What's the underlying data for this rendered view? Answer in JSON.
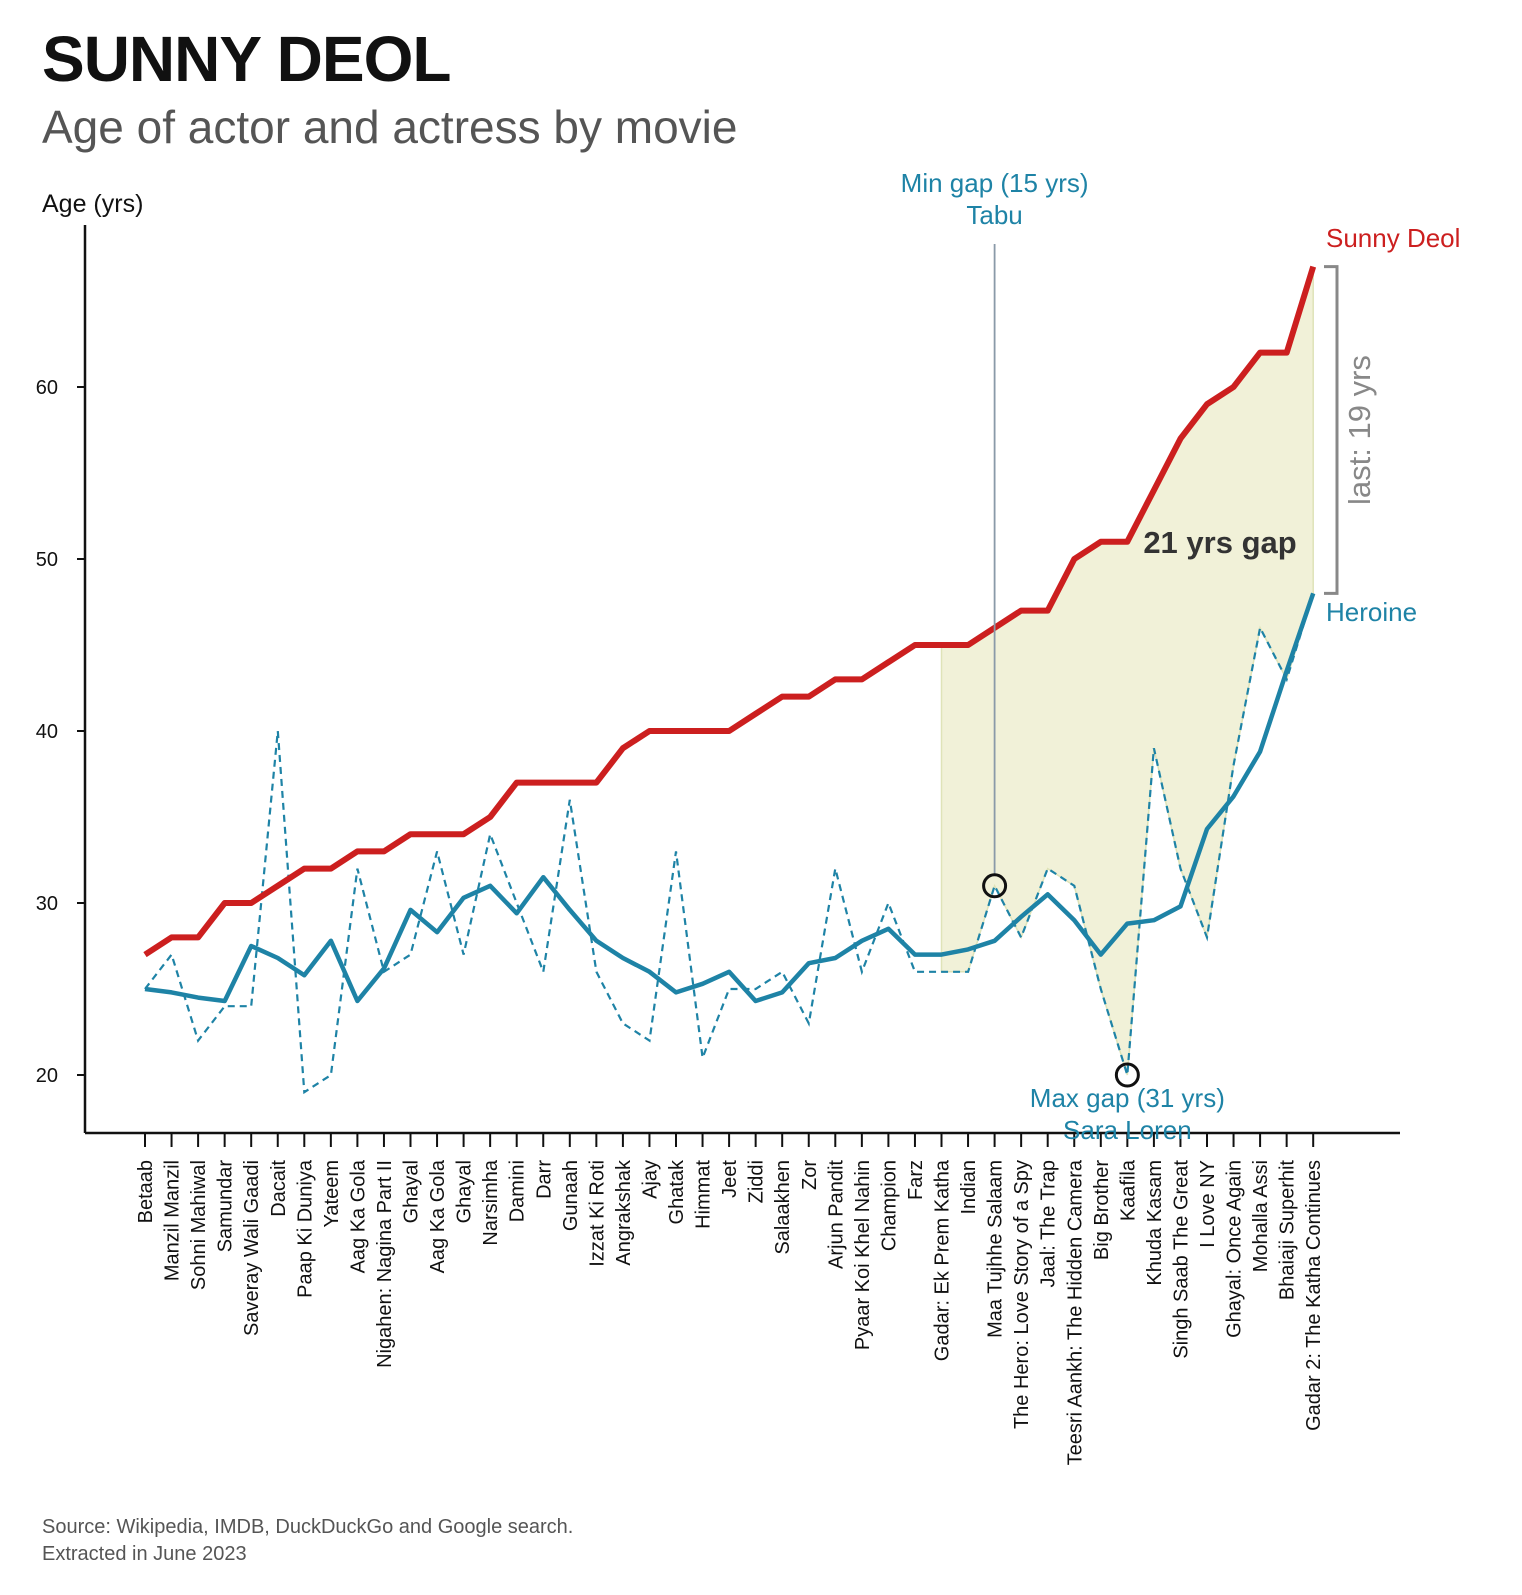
{
  "title": "SUNNY DEOL",
  "subtitle": "Age of actor and actress by movie",
  "source": {
    "line1": "Source: Wikipedia, IMDB, DuckDuckGo and Google search.",
    "line2": "Extracted in June 2023"
  },
  "colors": {
    "actor": "#cc1f1f",
    "heroine": "#1e83a6",
    "gap_fill": "#f1f1d8",
    "bracket": "#888888",
    "min_line": "#8a9aa8"
  },
  "chart_data": {
    "type": "line",
    "ylabel": "Age (yrs)",
    "ylim": [
      17,
      70
    ],
    "yticks": [
      20,
      30,
      40,
      50,
      60
    ],
    "categories": [
      "Betaab",
      "Manzil Manzil",
      "Sohni Mahiwal",
      "Samundar",
      "Saveray Wali Gaadi",
      "Dacait",
      "Paap Ki Duniya",
      "Yateem",
      "Aag Ka Gola",
      "Nigahen: Nagina Part II",
      "Ghayal",
      "Aag Ka Gola",
      "Ghayal",
      "Narsimha",
      "Damini",
      "Darr",
      "Gunaah",
      "Izzat Ki Roti",
      "Angrakshak",
      "Ajay",
      "Ghatak",
      "Himmat",
      "Jeet",
      "Ziddi",
      "Salaakhen",
      "Zor",
      "Arjun Pandit",
      "Pyaar Koi Khel Nahin",
      "Champion",
      "Farz",
      "Gadar: Ek Prem Katha",
      "Indian",
      "Maa Tujhhe Salaam",
      "The Hero: Love Story of a Spy",
      "Jaal: The Trap",
      "Teesri Aankh: The Hidden Camera",
      "Big Brother",
      "Kaafila",
      "Khuda Kasam",
      "Singh Saab The Great",
      "I Love NY",
      "Ghayal: Once Again",
      "Mohalla Assi",
      "Bhaiaji Superhit",
      "Gadar 2: The Katha Continues"
    ],
    "series": [
      {
        "name": "Sunny Deol",
        "style": "solid",
        "values": [
          27,
          28,
          28,
          30,
          30,
          31,
          32,
          32,
          33,
          33,
          34,
          34,
          34,
          35,
          37,
          37,
          37,
          37,
          39,
          40,
          40,
          40,
          40,
          41,
          42,
          42,
          43,
          43,
          44,
          45,
          45,
          45,
          46,
          47,
          47,
          50,
          51,
          51,
          54,
          57,
          59,
          60,
          62,
          62,
          67
        ]
      },
      {
        "name": "Heroine",
        "style": "dashed",
        "values": [
          25,
          27,
          22,
          24,
          24,
          40,
          19,
          20,
          32,
          26,
          27,
          33,
          27,
          34,
          30,
          26,
          36,
          26,
          23,
          22,
          33,
          21,
          25,
          25,
          26,
          23,
          32,
          26,
          30,
          26,
          26,
          26,
          31,
          28,
          32,
          31,
          25,
          20,
          39,
          32,
          28,
          38,
          46,
          43,
          48
        ]
      },
      {
        "name": "Heroine",
        "style": "solid",
        "values": [
          25,
          24.8,
          24.5,
          24.3,
          27.5,
          26.8,
          25.8,
          27.8,
          24.3,
          26.2,
          29.6,
          28.3,
          30.3,
          31,
          29.4,
          31.5,
          29.6,
          27.8,
          26.8,
          26,
          24.8,
          25.3,
          26,
          24.3,
          24.8,
          26.5,
          26.8,
          27.8,
          28.5,
          27,
          27,
          27.3,
          27.8,
          29.2,
          30.5,
          29,
          27,
          28.8,
          29,
          29.8,
          34.3,
          36.2,
          38.8,
          43.5,
          48
        ]
      }
    ],
    "shaded_range": {
      "from": "Gadar: Ek Prem Katha",
      "to": "Gadar 2: The Katha Continues"
    },
    "annotations": {
      "min_gap_label": "Min gap (15 yrs)",
      "min_gap_name": "Tabu",
      "min_gap_point": {
        "category": "Maa Tujhhe Salaam",
        "value": 31
      },
      "max_gap_label": "Max gap (31 yrs)",
      "max_gap_name": "Sara Loren",
      "max_gap_point": {
        "category": "Kaafila",
        "value": 20
      },
      "gap_label": "21 yrs gap",
      "last_gap_label": "last: 19 yrs",
      "actor_label": "Sunny Deol",
      "heroine_label": "Heroine"
    }
  }
}
